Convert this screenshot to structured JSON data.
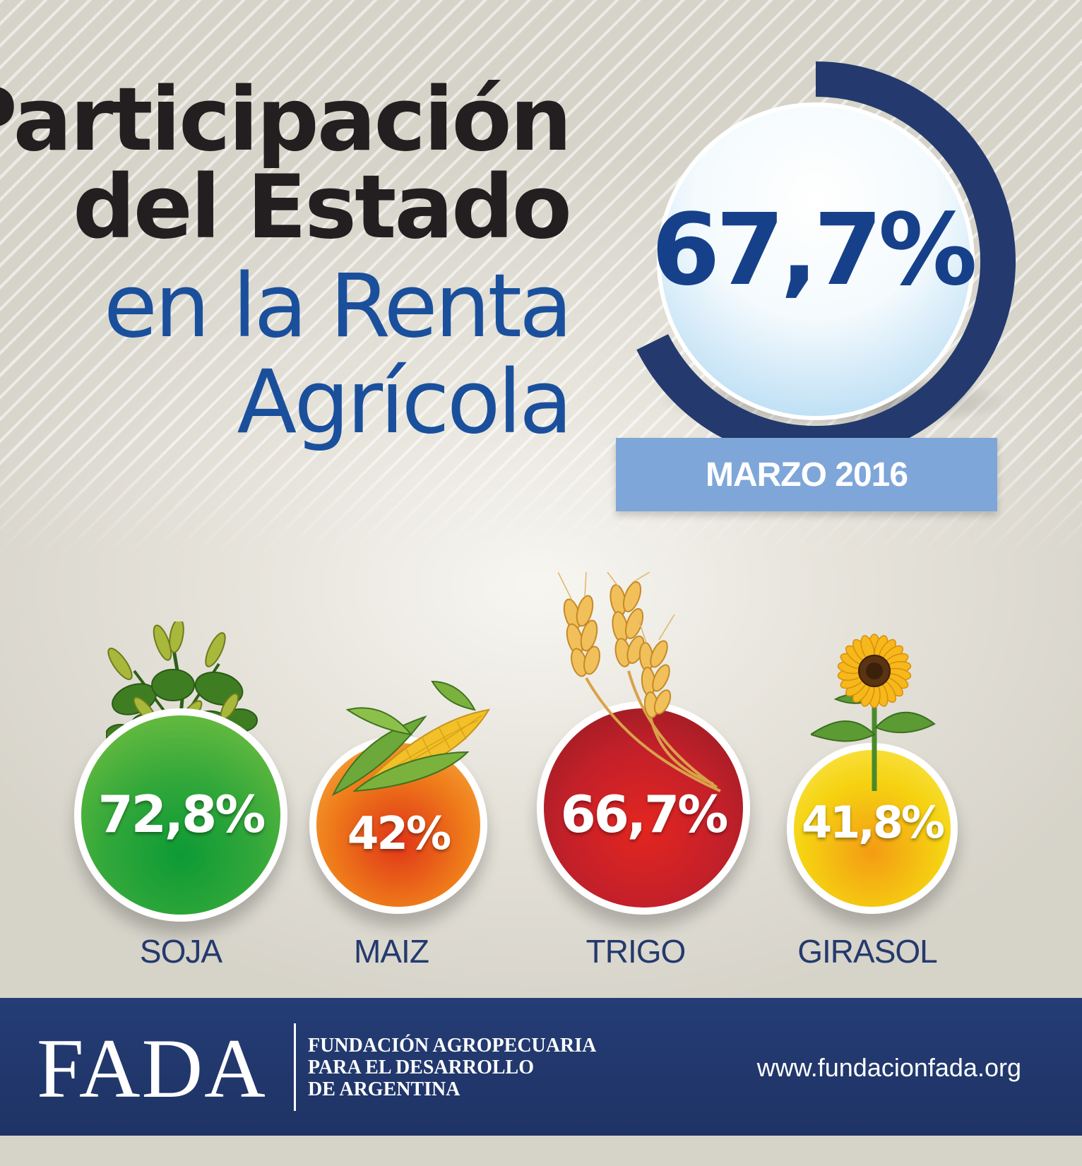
{
  "title": {
    "line1": "Participación",
    "line2": "del Estado",
    "line3": "en la Renta",
    "line4": "Agrícola"
  },
  "main_indicator": {
    "value_label": "67,7%",
    "value": 67.7,
    "date": "MARZO 2016",
    "ring_color": "#243a6e",
    "circle_color": "#cfe6f7"
  },
  "crops": [
    {
      "name": "SOJA",
      "value_label": "72,8%",
      "value": 72.8,
      "color": "#3fa535",
      "plant_icon": "soybean-plant-icon"
    },
    {
      "name": "MAIZ",
      "value_label": "42%",
      "value": 42,
      "color": "#ef7d1a",
      "plant_icon": "corn-cob-icon"
    },
    {
      "name": "TRIGO",
      "value_label": "66,7%",
      "value": 66.7,
      "color": "#c4202a",
      "plant_icon": "wheat-ears-icon"
    },
    {
      "name": "GIRASOL",
      "value_label": "41,8%",
      "value": 41.8,
      "color": "#f5d311",
      "plant_icon": "sunflower-icon"
    }
  ],
  "footer": {
    "logo": "FADA",
    "org_line1": "FUNDACIÓN AGROPECUARIA",
    "org_line2": "PARA EL DESARROLLO",
    "org_line3": "DE ARGENTINA",
    "url": "www.fundacionfada.org",
    "background_color": "#243d75"
  }
}
